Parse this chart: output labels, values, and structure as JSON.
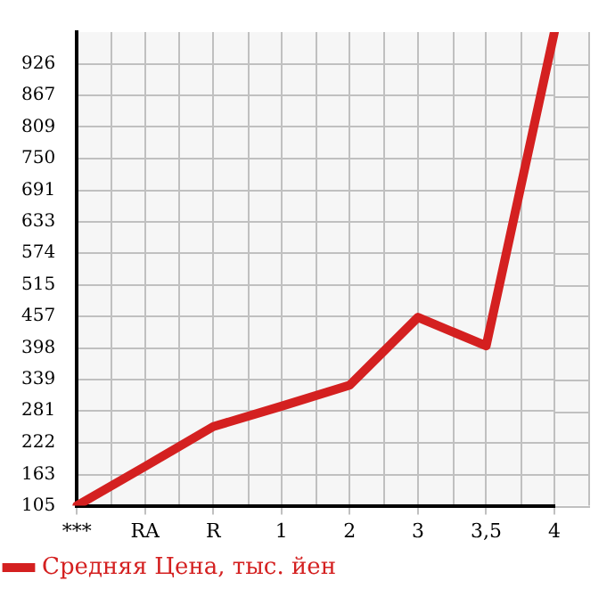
{
  "chart_data": {
    "type": "line",
    "categories": [
      "***",
      "RA",
      "R",
      "1",
      "2",
      "3",
      "3,5",
      "4"
    ],
    "series": [
      {
        "name": "Средняя Цена, тыс. йен",
        "color": "#d42020",
        "values": [
          105,
          178,
          252,
          290,
          329,
          455,
          402,
          985
        ]
      }
    ],
    "ylim": [
      105,
      985
    ],
    "yticks": [
      105,
      163,
      222,
      281,
      339,
      398,
      457,
      515,
      574,
      633,
      691,
      750,
      809,
      867,
      926
    ],
    "grid": true,
    "legend": "bottom left",
    "marker": "none",
    "line_style": "solid"
  }
}
